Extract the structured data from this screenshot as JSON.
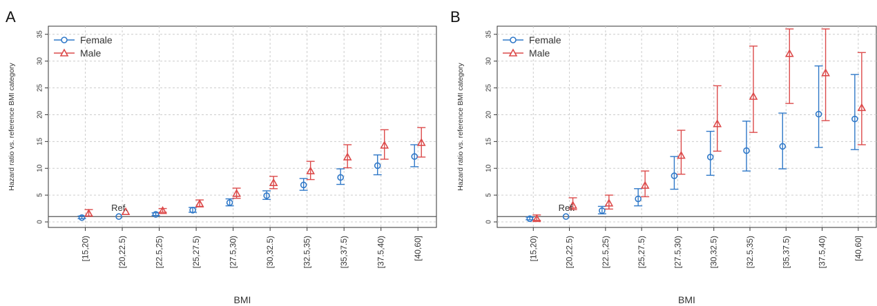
{
  "colors": {
    "female": "#2f78c8",
    "male": "#dc4a4a",
    "axis": "#333333",
    "grid": "#cccccc",
    "reference_line": "#555555"
  },
  "chart_data": [
    {
      "type": "scatter",
      "panel_label": "A",
      "xlabel": "BMI",
      "ylabel": "Hazard ratio vs. reference BMI category",
      "ylim": [
        0,
        36
      ],
      "yticks": [
        0,
        5,
        10,
        15,
        20,
        25,
        30,
        35
      ],
      "grid": true,
      "legend_position": "top-left",
      "reference_label": "Ref.",
      "reference_line_y": 1,
      "categories": [
        "[15,20)",
        "[20,22.5)",
        "[22.5,25)",
        "[25,27.5)",
        "[27.5,30)",
        "[30,32.5)",
        "[32.5,35)",
        "[35,37.5)",
        "[37.5,40)",
        "[40,60]"
      ],
      "series": [
        {
          "name": "Female",
          "marker": "circle",
          "values": [
            0.8,
            1.0,
            1.4,
            2.2,
            3.6,
            4.9,
            6.9,
            8.3,
            10.5,
            12.2
          ],
          "lower": [
            0.6,
            null,
            1.2,
            1.8,
            3.0,
            4.2,
            5.9,
            7.0,
            8.8,
            10.3
          ],
          "upper": [
            1.1,
            null,
            1.7,
            2.7,
            4.3,
            5.8,
            8.1,
            9.9,
            12.5,
            14.4
          ]
        },
        {
          "name": "Male",
          "marker": "triangle",
          "values": [
            1.6,
            1.9,
            2.1,
            3.4,
            5.3,
            7.3,
            9.5,
            12.1,
            14.3,
            14.8
          ],
          "lower": [
            1.1,
            null,
            1.8,
            2.8,
            4.4,
            6.2,
            7.9,
            10.1,
            11.7,
            12.1
          ],
          "upper": [
            2.3,
            null,
            2.5,
            4.1,
            6.3,
            8.5,
            11.3,
            14.4,
            17.2,
            17.6
          ]
        }
      ]
    },
    {
      "type": "scatter",
      "panel_label": "B",
      "xlabel": "BMI",
      "ylabel": "Hazard ratio vs. reference BMI category",
      "ylim": [
        0,
        36
      ],
      "yticks": [
        0,
        5,
        10,
        15,
        20,
        25,
        30,
        35
      ],
      "grid": true,
      "legend_position": "top-left",
      "reference_label": "Ref.",
      "reference_line_y": 1,
      "categories": [
        "[15,20)",
        "[20,22.5)",
        "[22.5,25)",
        "[25,27.5)",
        "[27.5,30)",
        "[30,32.5)",
        "[32.5,35)",
        "[35,37.5)",
        "[37.5,40)",
        "[40,60]"
      ],
      "series": [
        {
          "name": "Female",
          "marker": "circle",
          "values": [
            0.6,
            1.0,
            2.1,
            4.3,
            8.6,
            12.1,
            13.3,
            14.1,
            20.1,
            19.2
          ],
          "lower": [
            0.4,
            null,
            1.5,
            3.0,
            6.1,
            8.7,
            9.5,
            9.9,
            13.9,
            13.5
          ],
          "upper": [
            0.9,
            null,
            2.9,
            6.2,
            12.2,
            16.9,
            18.8,
            20.3,
            29.1,
            27.5
          ]
        },
        {
          "name": "Male",
          "marker": "triangle",
          "values": [
            0.6,
            3.1,
            3.5,
            6.8,
            12.4,
            18.3,
            23.4,
            31.4,
            27.8,
            21.3
          ],
          "lower": [
            0.3,
            2.3,
            2.4,
            4.7,
            8.9,
            13.2,
            16.7,
            22.1,
            18.9,
            14.4
          ],
          "upper": [
            1.3,
            4.5,
            5.0,
            9.5,
            17.1,
            25.4,
            32.8,
            36.0,
            36.0,
            31.6
          ]
        }
      ]
    }
  ]
}
